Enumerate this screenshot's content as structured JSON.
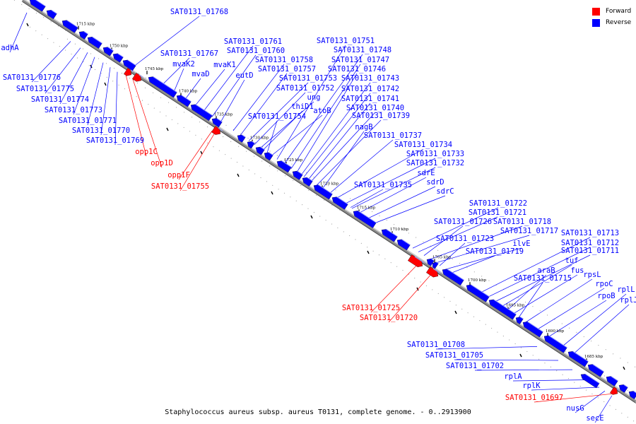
{
  "legend": [
    {
      "label": "Forward",
      "color": "#ff0000"
    },
    {
      "label": "Reverse",
      "color": "#0000ff"
    }
  ],
  "caption": "Staphylococcus aureus subsp. aureus T0131, complete genome. - 0..2913900",
  "colors": {
    "forward": "#ff0000",
    "reverse": "#0000ff",
    "backbone": "#8a8a8a"
  },
  "ticks": [
    "1685 kbp",
    "1690 kbp",
    "1695 kbp",
    "1700 kbp",
    "1705 kbp",
    "1710 kbp",
    "1715 kbp",
    "1720 kbp",
    "1725 kbp",
    "1730 kbp",
    "1735 kbp",
    "1740 kbp",
    "1745 kbp",
    "1750 kbp",
    "1715 kbp"
  ],
  "labels_upper": [
    "SAT0131_01768",
    "SAT0131_01767",
    "mvaK2",
    "mvaD",
    "mvaK1",
    "SAT0131_01761",
    "SAT0131_01760",
    "eutD",
    "SAT0131_01758",
    "SAT0131_01757",
    "SAT0131_01753",
    "SAT0131_01752",
    "ung",
    "thiD1",
    "SAT0131_01754",
    "atoB",
    "SAT0131_01751",
    "SAT0131_01748",
    "SAT0131_01747",
    "SAT0131_01746",
    "SAT0131_01743",
    "SAT0131_01742",
    "SAT0131_01741",
    "SAT0131_01740",
    "SAT0131_01739",
    "nagB",
    "SAT0131_01737",
    "SAT0131_01734",
    "SAT0131_01733",
    "SAT0131_01732",
    "sdrE",
    "sdrD",
    "sdrC",
    "SAT0131_01735",
    "SAT0131_01722",
    "SAT0131_01721",
    "SAT0131_01726",
    "SAT0131_01718",
    "SAT0131_01717",
    "SAT0131_01723",
    "ilvE",
    "SAT0131_01719",
    "SAT0131_01713",
    "SAT0131_01712",
    "SAT0131_01711",
    "tuf",
    "araB",
    "fus",
    "SAT0131_01715",
    "rpsL",
    "rpoC",
    "rpoB",
    "rplL",
    "rplJ"
  ],
  "labels_lower_blue": [
    "adhA",
    "SAT0131_01776",
    "SAT0131_01775",
    "SAT0131_01774",
    "SAT0131_01773",
    "SAT0131_01771",
    "SAT0131_01770",
    "SAT0131_01769",
    "SAT0131_01708",
    "SAT0131_01705",
    "SAT0131_01702",
    "rplA",
    "rplK",
    "nusG",
    "secE"
  ],
  "labels_forward": [
    "opp1C",
    "opp1D",
    "opp1F",
    "SAT0131_01755",
    "SAT0131_01725",
    "SAT0131_01720",
    "SAT0131_01697"
  ]
}
